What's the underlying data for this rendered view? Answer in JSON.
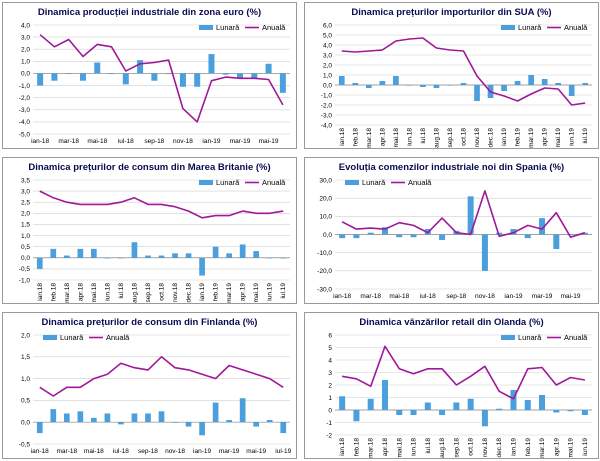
{
  "colors": {
    "bar": "#4a9fdc",
    "line": "#a0189a",
    "grid": "#cfcfcf",
    "title": "#0a0a50"
  },
  "chart_data": [
    {
      "type": "bar+line",
      "title": "Dinamica producției industriale din zona euro (%)",
      "legend": {
        "monthly": "Lunară",
        "annual": "Anuală",
        "position": "top-right"
      },
      "ylim": [
        -5,
        4
      ],
      "yticks": [
        "4,0",
        "3,0",
        "2,0",
        "1,0",
        "0,0",
        "-1,0",
        "-2,0",
        "-3,0",
        "-4,0",
        "-5,0"
      ],
      "xtick_labels": [
        "ian-18",
        "mar-18",
        "mai-18",
        "iul-18",
        "sep-18",
        "nov-18",
        "ian-19",
        "mar-19",
        "mai-19"
      ],
      "x_labels_rotated": false,
      "categories": [
        "ian-18",
        "feb-18",
        "mar-18",
        "apr-18",
        "mai-18",
        "iun-18",
        "iul-18",
        "aug-18",
        "sep-18",
        "oct-18",
        "nov-18",
        "dec-18",
        "ian-19",
        "feb-19",
        "mar-19",
        "apr-19",
        "mai-19",
        "iun-19"
      ],
      "series": [
        {
          "name": "Lunară",
          "kind": "bar",
          "values": [
            -1.0,
            -0.6,
            0.0,
            -0.6,
            0.9,
            0.0,
            -0.9,
            1.1,
            -0.6,
            0.0,
            -1.1,
            -1.1,
            1.6,
            -0.1,
            -0.4,
            -0.4,
            0.8,
            -1.6
          ]
        },
        {
          "name": "Anuală",
          "kind": "line",
          "values": [
            3.2,
            2.2,
            2.8,
            1.4,
            2.4,
            2.2,
            0.2,
            0.8,
            0.9,
            1.1,
            -2.9,
            -4.0,
            -0.6,
            -0.3,
            -0.4,
            -0.4,
            -0.5,
            -2.6
          ]
        }
      ]
    },
    {
      "type": "bar+line",
      "title": "Dinamica prețurilor importurilor din SUA (%)",
      "legend": {
        "monthly": "Lunară",
        "annual": "Anuală",
        "position": "top-right"
      },
      "ylim": [
        -4,
        6
      ],
      "yticks": [
        "6,0",
        "5,0",
        "4,0",
        "3,0",
        "2,0",
        "1,0",
        "0,0",
        "-1,0",
        "-2,0",
        "-3,0",
        "-4,0"
      ],
      "xtick_labels": [
        "ian.18",
        "feb.18",
        "mar.18",
        "apr.18",
        "mai.18",
        "iun.18",
        "iul.18",
        "aug.18",
        "sep.18",
        "oct.18",
        "nov.18",
        "dec.18",
        "ian.19",
        "feb.19",
        "mar.19",
        "apr.19",
        "mai.19",
        "iun.19",
        "iul.19"
      ],
      "x_labels_rotated": true,
      "categories": [
        "ian.18",
        "feb.18",
        "mar.18",
        "apr.18",
        "mai.18",
        "iun.18",
        "iul.18",
        "aug.18",
        "sep.18",
        "oct.18",
        "nov.18",
        "dec.18",
        "ian.19",
        "feb.19",
        "mar.19",
        "apr.19",
        "mai.19",
        "iun.19",
        "iul.19"
      ],
      "series": [
        {
          "name": "Lunară",
          "kind": "bar",
          "values": [
            0.9,
            0.2,
            -0.3,
            0.4,
            0.9,
            0.0,
            -0.2,
            -0.3,
            0.0,
            0.2,
            -1.6,
            -1.3,
            -0.6,
            0.4,
            1.0,
            0.6,
            0.2,
            -1.1,
            0.2
          ]
        },
        {
          "name": "Anuală",
          "kind": "line",
          "values": [
            3.4,
            3.3,
            3.4,
            3.5,
            4.4,
            4.6,
            4.7,
            3.7,
            3.5,
            3.4,
            0.9,
            -0.7,
            -1.1,
            -1.6,
            -0.9,
            -0.3,
            -0.4,
            -2.0,
            -1.8
          ]
        }
      ]
    },
    {
      "type": "bar+line",
      "title": "Dinamica prețurilor de consum din Marea Britanie (%)",
      "legend": {
        "monthly": "Lunară",
        "annual": "Anuală",
        "position": "top-right"
      },
      "ylim": [
        -1,
        3.5
      ],
      "yticks": [
        "3,5",
        "3,0",
        "2,5",
        "2,0",
        "1,5",
        "1,0",
        "0,5",
        "0,0",
        "-0,5",
        "-1,0"
      ],
      "xtick_labels": [
        "ian.18",
        "feb.18",
        "mar.18",
        "apr.18",
        "mai.18",
        "iun.18",
        "iul.18",
        "aug.18",
        "sep.18",
        "oct.18",
        "nov.18",
        "dec.18",
        "ian.19",
        "feb.19",
        "mar.19",
        "apr.19",
        "mai.19",
        "iun.19",
        "iul.19"
      ],
      "x_labels_rotated": true,
      "categories": [
        "ian.18",
        "feb.18",
        "mar.18",
        "apr.18",
        "mai.18",
        "iun.18",
        "iul.18",
        "aug.18",
        "sep.18",
        "oct.18",
        "nov.18",
        "dec.18",
        "ian.19",
        "feb.19",
        "mar.19",
        "apr.19",
        "mai.19",
        "iun.19",
        "iul.19"
      ],
      "series": [
        {
          "name": "Lunară",
          "kind": "bar",
          "values": [
            -0.5,
            0.4,
            0.1,
            0.4,
            0.4,
            0.0,
            0.0,
            0.7,
            0.1,
            0.1,
            0.2,
            0.2,
            -0.8,
            0.5,
            0.2,
            0.6,
            0.3,
            0.0,
            0.0
          ]
        },
        {
          "name": "Anuală",
          "kind": "line",
          "values": [
            3.0,
            2.7,
            2.5,
            2.4,
            2.4,
            2.4,
            2.5,
            2.7,
            2.4,
            2.4,
            2.3,
            2.1,
            1.8,
            1.9,
            1.9,
            2.1,
            2.0,
            2.0,
            2.1
          ]
        }
      ]
    },
    {
      "type": "bar+line",
      "title": "Evoluția comenzilor industriale noi din Spania (%)",
      "legend": {
        "monthly": "Lunară",
        "annual": "Anuală",
        "position": "top-left"
      },
      "ylim": [
        -30,
        30
      ],
      "yticks": [
        "30,0",
        "20,0",
        "10,0",
        "0,0",
        "-10,0",
        "-20,0",
        "-30,0"
      ],
      "xtick_labels": [
        "ian-18",
        "mar-18",
        "mai-18",
        "iul-18",
        "sep-18",
        "nov-18",
        "ian-19",
        "mar-19",
        "mai-19"
      ],
      "x_labels_rotated": false,
      "categories": [
        "ian-18",
        "feb-18",
        "mar-18",
        "apr-18",
        "mai-18",
        "iun-18",
        "iul-18",
        "aug-18",
        "sep-18",
        "oct-18",
        "nov-18",
        "dec-18",
        "ian-19",
        "feb-19",
        "mar-19",
        "apr-19",
        "mai-19",
        "iun-19"
      ],
      "series": [
        {
          "name": "Lunară",
          "kind": "bar",
          "values": [
            -2.0,
            -2.0,
            1.0,
            4.0,
            -1.5,
            -1.5,
            3.0,
            -3.0,
            2.0,
            21.0,
            -20.0,
            1.0,
            3.0,
            -2.0,
            9.0,
            -8.0,
            0.0,
            1.0
          ]
        },
        {
          "name": "Anuală",
          "kind": "line",
          "values": [
            7.0,
            3.0,
            3.5,
            3.0,
            6.5,
            5.0,
            1.0,
            9.0,
            1.0,
            0.0,
            24.0,
            -1.0,
            1.0,
            5.0,
            3.0,
            12.0,
            -1.5,
            1.0
          ]
        }
      ]
    },
    {
      "type": "bar+line",
      "title": "Dinamica prețurilor de consum din Finlanda (%)",
      "legend": {
        "monthly": "Lunară",
        "annual": "Anuală",
        "position": "top-left"
      },
      "ylim": [
        -0.5,
        2.0
      ],
      "yticks": [
        "2,0",
        "1,5",
        "1,0",
        "0,5",
        "0,0",
        "-0,5"
      ],
      "xtick_labels": [
        "ian-18",
        "mar-18",
        "mai-18",
        "iul-18",
        "sep-18",
        "nov-18",
        "ian-19",
        "mar-19",
        "mai-19",
        "iul-19"
      ],
      "x_labels_rotated": false,
      "categories": [
        "ian-18",
        "feb-18",
        "mar-18",
        "apr-18",
        "mai-18",
        "iun-18",
        "iul-18",
        "aug-18",
        "sep-18",
        "oct-18",
        "nov-18",
        "dec-18",
        "ian-19",
        "feb-19",
        "mar-19",
        "apr-19",
        "mai-19",
        "iun-19",
        "iul-19"
      ],
      "series": [
        {
          "name": "Lunară",
          "kind": "bar",
          "values": [
            -0.25,
            0.3,
            0.2,
            0.25,
            0.1,
            0.2,
            -0.05,
            0.2,
            0.2,
            0.25,
            0.0,
            -0.1,
            -0.3,
            0.45,
            0.05,
            0.55,
            -0.1,
            0.05,
            -0.25
          ]
        },
        {
          "name": "Anuală",
          "kind": "line",
          "values": [
            0.8,
            0.6,
            0.8,
            0.8,
            1.0,
            1.1,
            1.35,
            1.25,
            1.2,
            1.5,
            1.25,
            1.2,
            1.1,
            1.0,
            1.3,
            1.2,
            1.1,
            1.0,
            0.8
          ]
        }
      ]
    },
    {
      "type": "bar+line",
      "title": "Dinamica vânzărilor retail din Olanda (%)",
      "legend": {
        "monthly": "Lunară",
        "annual": "Anuală",
        "position": "top-right"
      },
      "ylim": [
        -2,
        6
      ],
      "yticks": [
        "6",
        "5",
        "4",
        "3",
        "2",
        "1",
        "0",
        "-1",
        "-2"
      ],
      "xtick_labels": [
        "ian.18",
        "feb.18",
        "mar.18",
        "apr.18",
        "mai.18",
        "iun.18",
        "iul.18",
        "aug.18",
        "sep.18",
        "oct.18",
        "nov.18",
        "dec.18",
        "ian.19",
        "feb.19",
        "mar.19",
        "apr.19",
        "mai.19",
        "iun.19"
      ],
      "x_labels_rotated": true,
      "categories": [
        "ian.18",
        "feb.18",
        "mar.18",
        "apr.18",
        "mai.18",
        "iun.18",
        "iul.18",
        "aug.18",
        "sep.18",
        "oct.18",
        "nov.18",
        "dec.18",
        "ian.19",
        "feb.19",
        "mar.19",
        "apr.19",
        "mai.19",
        "iun.19"
      ],
      "series": [
        {
          "name": "Lunară",
          "kind": "bar",
          "values": [
            1.1,
            -0.9,
            0.9,
            2.4,
            -0.4,
            -0.4,
            0.6,
            -0.4,
            0.6,
            0.9,
            -1.3,
            0.1,
            1.6,
            0.8,
            1.2,
            -0.2,
            -0.1,
            -0.4
          ]
        },
        {
          "name": "Anuală",
          "kind": "line",
          "values": [
            2.7,
            2.5,
            1.9,
            5.1,
            3.3,
            2.9,
            3.3,
            3.3,
            2.0,
            2.7,
            3.5,
            1.5,
            0.9,
            3.3,
            3.4,
            2.0,
            2.6,
            2.4
          ]
        }
      ]
    }
  ]
}
